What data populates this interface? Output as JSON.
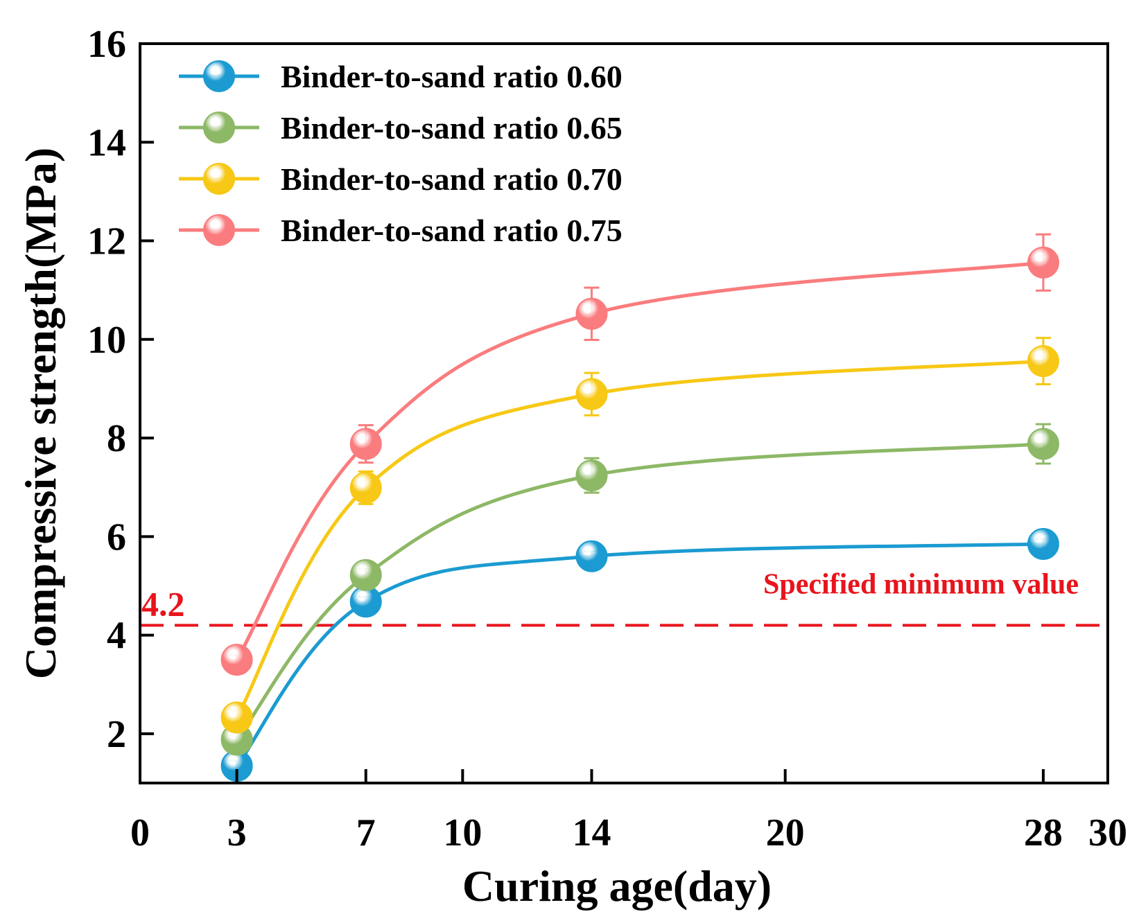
{
  "chart_data": {
    "type": "line",
    "title": "",
    "xlabel": "Curing age(day)",
    "ylabel": "Compressive strength(MPa)",
    "xlim": [
      0,
      30
    ],
    "ylim": [
      1,
      16
    ],
    "x_ticks": [
      0,
      3,
      7,
      10,
      14,
      20,
      28,
      30
    ],
    "y_ticks": [
      2,
      4,
      6,
      8,
      10,
      12,
      14,
      16
    ],
    "x": [
      3,
      7,
      14,
      28
    ],
    "grid": false,
    "legend_position": "top-left",
    "series": [
      {
        "name": "Binder-to-sand ratio 0.60",
        "color": "#1B9BD1",
        "values": [
          1.35,
          4.68,
          5.6,
          5.85
        ],
        "errors": [
          0.1,
          0.1,
          0.1,
          0.1
        ]
      },
      {
        "name": "Binder-to-sand ratio 0.65",
        "color": "#8DB866",
        "values": [
          1.88,
          5.22,
          7.24,
          7.88
        ],
        "errors": [
          0.15,
          0.12,
          0.35,
          0.4
        ]
      },
      {
        "name": "Binder-to-sand ratio 0.70",
        "color": "#F7C815",
        "values": [
          2.33,
          6.99,
          8.89,
          9.56
        ],
        "errors": [
          0.15,
          0.33,
          0.43,
          0.47
        ]
      },
      {
        "name": "Binder-to-sand ratio 0.75",
        "color": "#FA7C7E",
        "values": [
          3.5,
          7.88,
          10.52,
          11.56
        ],
        "errors": [
          0.1,
          0.38,
          0.53,
          0.57
        ]
      }
    ],
    "reference_line": {
      "value": 4.2,
      "value_label": "4.2",
      "label": "Specified minimum value",
      "color": "#E8141C",
      "style": "dashed"
    }
  }
}
